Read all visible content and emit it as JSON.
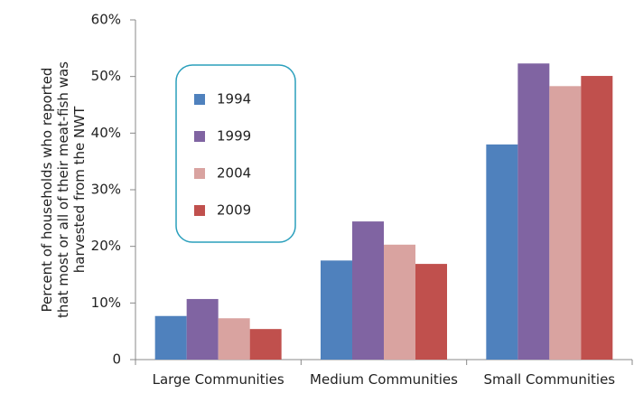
{
  "chart_data": {
    "type": "bar",
    "ylabel_lines": [
      "Percent of households who reported",
      "that most or all of their meat-fish was",
      "harvested from the NWT"
    ],
    "categories": [
      "Large Communities",
      "Medium Communities",
      "Small Communities"
    ],
    "series": [
      {
        "name": "1994",
        "color": "#4f81bd",
        "values": [
          7.7,
          17.5,
          38.0
        ]
      },
      {
        "name": "1999",
        "color": "#8064a2",
        "values": [
          10.7,
          24.4,
          52.3
        ]
      },
      {
        "name": "2004",
        "color": "#d9a3a0",
        "values": [
          7.3,
          20.3,
          48.3
        ]
      },
      {
        "name": "2009",
        "color": "#c0504d",
        "values": [
          5.4,
          16.9,
          50.1
        ]
      }
    ],
    "ylim": [
      0,
      60
    ],
    "yticks": [
      0,
      {
        "value": 10,
        "label": "10%"
      },
      {
        "value": 20,
        "label": "20%"
      },
      {
        "value": 30,
        "label": "30%"
      },
      {
        "value": 40,
        "label": "40%"
      },
      {
        "value": 50,
        "label": "50%"
      },
      {
        "value": 60,
        "label": "60%"
      }
    ]
  }
}
